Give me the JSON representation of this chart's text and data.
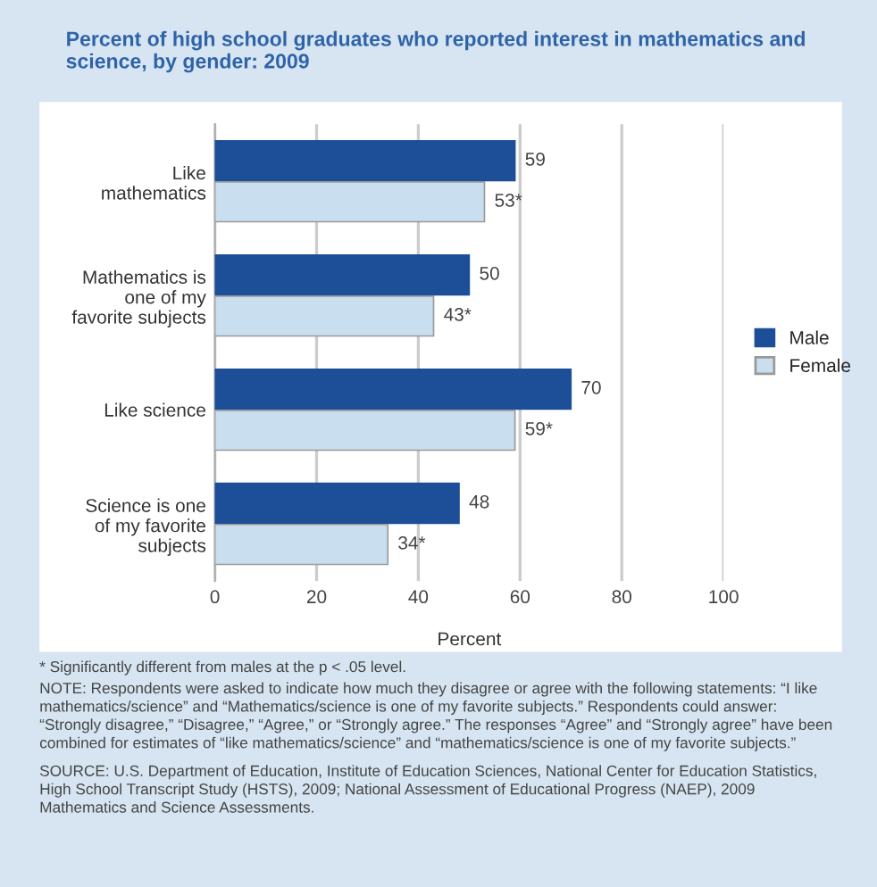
{
  "chart_data": {
    "type": "bar",
    "orientation": "horizontal",
    "title": "Percent of high school graduates who reported interest in mathematics and science, by gender: 2009",
    "categories": [
      "Like\nmathematics",
      "Mathematics is\none of my\nfavorite subjects",
      "Like science",
      "Science is one\nof my favorite\nsubjects"
    ],
    "series": [
      {
        "name": "Male",
        "color": "#1c4f97",
        "values": [
          59,
          50,
          70,
          48
        ],
        "value_labels": [
          "59",
          "50",
          "70",
          "48"
        ]
      },
      {
        "name": "Female",
        "color": "#c9deee",
        "values": [
          53,
          43,
          59,
          34
        ],
        "value_labels": [
          "53*",
          "43*",
          "59*",
          "34*"
        ]
      }
    ],
    "xlabel": "Percent",
    "xlim": [
      0,
      100
    ],
    "xticks": [
      0,
      20,
      40,
      60,
      80,
      100
    ],
    "grid": "x",
    "legend": "right",
    "annotations": [
      "* Significantly different from males at the p < .05 level.",
      "NOTE: Respondents were asked to indicate how much they disagree or agree with the following statements: “I like mathematics/science” and “Mathematics/science is one of my favorite subjects.” Respondents could answer: “Strongly disagree,” “Disagree,” “Agree,” or “Strongly agree.” The responses “Agree” and “Strongly agree” have been combined for estimates of “like mathematics/science” and “mathematics/science is one of my favorite subjects.”",
      "SOURCE: U.S. Department of Education, Institute of Education Sciences, National Center for Education Statistics, High School Transcript Study (HSTS), 2009; National Assessment of Educational Progress (NAEP), 2009 Mathematics and Science Assessments."
    ]
  }
}
